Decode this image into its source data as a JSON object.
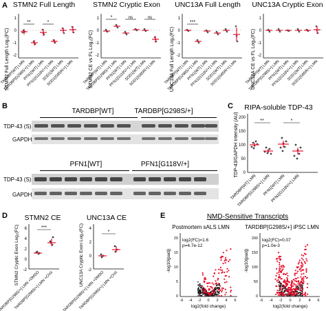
{
  "figure": {
    "panels": {
      "A": {
        "letter": "A"
      },
      "B": {
        "letter": "B"
      },
      "C": {
        "letter": "C"
      },
      "D": {
        "letter": "D"
      },
      "E": {
        "letter": "E"
      }
    }
  },
  "panel_a": {
    "stmn2_fl": {
      "title": "STMN2 Full Length",
      "ylabel": "STMN2 Full Length Log₂(FC)",
      "yticks": [
        "1",
        "0",
        "-1",
        "-2"
      ],
      "sig": [
        "**",
        "*"
      ]
    },
    "stmn2_ce": {
      "title": "STMN2 Cryptic Exon",
      "ylabel": "STMN2 CE vs FL Log₂(FC)",
      "yticks": [
        "1",
        "0",
        "-1",
        "-2"
      ],
      "sig": [
        "*",
        "ns",
        "ns"
      ]
    },
    "unc13a_fl": {
      "title": "UNC13A Full Length",
      "ylabel": "UNC13A Full Length Log₂(FC)",
      "yticks": [
        "1",
        "0",
        "-1",
        "-2"
      ],
      "sig": [
        "***"
      ]
    },
    "unc13a_ce": {
      "title": "UNC13A Cryptic Exon",
      "ylabel": "UNC13A CE vs FL Log₂(FC)",
      "yticks": [
        "1",
        "0",
        "-1",
        "-2"
      ],
      "sig": []
    },
    "xlabels": [
      "TARDBP[WT] LMN",
      "TARDBP[G298S/+] LMN",
      "PFN1[WT] LMN",
      "PFN1[G118V/+] LMN",
      "SOD1[WT] LMN",
      "SOD1[G85R/+] LMN"
    ]
  },
  "panel_b": {
    "top": {
      "cond1": "TARDBP[WT]",
      "cond2": "TARDBP[G298S/+]"
    },
    "bottom": {
      "cond1": "PFN1[WT]",
      "cond2": "PFN1[G118V/+]"
    },
    "row_labels": {
      "tdp": "TDP-43 (S)",
      "gapdh": "GAPDH"
    }
  },
  "panel_c": {
    "title": "RIPA-soluble TDP-43",
    "ylabel": "TDP-43/GAPDH Intensity (AU)",
    "yticks": [
      "200",
      "150",
      "100",
      "50",
      "0"
    ],
    "sig": [
      "**",
      "*"
    ],
    "xlabels": [
      "TARDBP[WT] LMN",
      "TARDBP[G298S/+] LMN",
      "PFN1[WT] LMN",
      "PFN1[G118V/+] LMN"
    ]
  },
  "panel_d": {
    "stmn2": {
      "title": "STMN2 CE",
      "ylabel": "STMN2 Cryptic Exon Log₂(FC)",
      "yticks": [
        "6",
        "4",
        "2",
        "0",
        "-2"
      ],
      "sig": "***"
    },
    "unc13a": {
      "title": "UNC13A CE",
      "ylabel": "UNC13A Cryptic Exon Log₂(FC)",
      "yticks": [
        "4",
        "2",
        "0",
        "-2"
      ],
      "sig": "*"
    },
    "xlabels": [
      "TARDBP[G298S/+] LMN +DMSO",
      "TARDBP[G298S/+] LMN +CHX"
    ]
  },
  "panel_e": {
    "title": "NMD-Sensitive Transcripts",
    "left": {
      "subtitle": "Postmortem sALS LMN",
      "stat1": "log2(FC)=1.6",
      "stat2": "p=4.7e-12",
      "xticks": [
        "-6",
        "-4",
        "-2",
        "0",
        "2",
        "4",
        "6"
      ],
      "yticks": [
        "20",
        "15",
        "10",
        "5",
        "0"
      ]
    },
    "right": {
      "subtitle": "TARDBP[G298S/+] iPSC LMN",
      "stat1": "log2(FC)=0.07",
      "stat2": "p=1.0e-3",
      "xticks": [
        "-6",
        "-4",
        "-2",
        "0",
        "2",
        "4",
        "6"
      ],
      "yticks": [
        "200",
        "150",
        "100",
        "50",
        "0"
      ]
    },
    "xlabel": "log2(fold change)",
    "ylabel": "-log10(padj)"
  },
  "colors": {
    "accent": "#e8112d",
    "grey": "#888888"
  }
}
